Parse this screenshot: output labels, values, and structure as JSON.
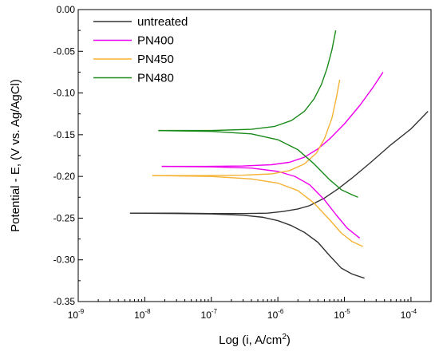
{
  "chart_data": {
    "type": "line",
    "xlabel": "Log (i, A/cm",
    "xlabel_sup": "2",
    "xlabel_close": ")",
    "ylabel": "Potential - E, (V vs. Ag/AgCl)",
    "xscale": "log",
    "xlim": [
      1e-09,
      0.0002
    ],
    "ylim": [
      -0.35,
      0.0
    ],
    "x_ticks": [
      {
        "value": 1e-09,
        "base": "10",
        "exp": "-9"
      },
      {
        "value": 1e-08,
        "base": "10",
        "exp": "-8"
      },
      {
        "value": 1e-07,
        "base": "10",
        "exp": "-7"
      },
      {
        "value": 1e-06,
        "base": "10",
        "exp": "-6"
      },
      {
        "value": 1e-05,
        "base": "10",
        "exp": "-5"
      },
      {
        "value": 0.0001,
        "base": "10",
        "exp": "-4"
      }
    ],
    "y_ticks": [
      {
        "value": 0.0,
        "label": "0.00"
      },
      {
        "value": -0.05,
        "label": "-0.05"
      },
      {
        "value": -0.1,
        "label": "-0.10"
      },
      {
        "value": -0.15,
        "label": "-0.15"
      },
      {
        "value": -0.2,
        "label": "-0.20"
      },
      {
        "value": -0.25,
        "label": "-0.25"
      },
      {
        "value": -0.3,
        "label": "-0.30"
      },
      {
        "value": -0.35,
        "label": "-0.35"
      }
    ],
    "grid": false,
    "legend": "top-left",
    "series": [
      {
        "name": "untreated",
        "color": "#333333",
        "anodic": [
          [
            6e-09,
            -0.244
          ],
          [
            3e-08,
            -0.244
          ],
          [
            1e-07,
            -0.2445
          ],
          [
            3e-07,
            -0.2445
          ],
          [
            7e-07,
            -0.244
          ],
          [
            1.2e-06,
            -0.242
          ],
          [
            2e-06,
            -0.239
          ],
          [
            3e-06,
            -0.235
          ],
          [
            5e-06,
            -0.226
          ],
          [
            8e-06,
            -0.215
          ],
          [
            1.3e-05,
            -0.202
          ],
          [
            2.5e-05,
            -0.183
          ],
          [
            5e-05,
            -0.162
          ],
          [
            0.0001,
            -0.143
          ],
          [
            0.00018,
            -0.122
          ]
        ],
        "cathodic": [
          [
            6e-09,
            -0.244
          ],
          [
            3e-08,
            -0.2445
          ],
          [
            1e-07,
            -0.245
          ],
          [
            3e-07,
            -0.2465
          ],
          [
            6e-07,
            -0.249
          ],
          [
            1e-06,
            -0.253
          ],
          [
            1.6e-06,
            -0.259
          ],
          [
            2.5e-06,
            -0.267
          ],
          [
            4e-06,
            -0.279
          ],
          [
            6e-06,
            -0.295
          ],
          [
            9e-06,
            -0.31
          ],
          [
            1.3e-05,
            -0.317
          ],
          [
            2e-05,
            -0.322
          ]
        ]
      },
      {
        "name": "PN400",
        "color": "#ee00ee",
        "anodic": [
          [
            1.8e-08,
            -0.188
          ],
          [
            8e-08,
            -0.188
          ],
          [
            3e-07,
            -0.1875
          ],
          [
            8e-07,
            -0.186
          ],
          [
            1.5e-06,
            -0.183
          ],
          [
            2.5e-06,
            -0.177
          ],
          [
            4e-06,
            -0.167
          ],
          [
            6e-06,
            -0.155
          ],
          [
            1e-05,
            -0.137
          ],
          [
            1.7e-05,
            -0.115
          ],
          [
            2.7e-05,
            -0.093
          ],
          [
            3.8e-05,
            -0.075
          ]
        ],
        "cathodic": [
          [
            1.8e-08,
            -0.188
          ],
          [
            1e-07,
            -0.1885
          ],
          [
            4e-07,
            -0.19
          ],
          [
            1e-06,
            -0.194
          ],
          [
            1.8e-06,
            -0.2
          ],
          [
            3e-06,
            -0.21
          ],
          [
            5e-06,
            -0.228
          ],
          [
            7.5e-06,
            -0.246
          ],
          [
            1.1e-05,
            -0.262
          ],
          [
            1.7e-05,
            -0.274
          ]
        ]
      },
      {
        "name": "PN450",
        "color": "#f5b335",
        "anodic": [
          [
            1.3e-08,
            -0.199
          ],
          [
            8e-08,
            -0.199
          ],
          [
            3e-07,
            -0.1985
          ],
          [
            8e-07,
            -0.197
          ],
          [
            1.5e-06,
            -0.193
          ],
          [
            2.5e-06,
            -0.185
          ],
          [
            3.8e-06,
            -0.172
          ],
          [
            5e-06,
            -0.155
          ],
          [
            6.5e-06,
            -0.13
          ],
          [
            7.5e-06,
            -0.107
          ],
          [
            8.5e-06,
            -0.084
          ]
        ],
        "cathodic": [
          [
            1.3e-08,
            -0.199
          ],
          [
            1e-07,
            -0.2
          ],
          [
            4e-07,
            -0.203
          ],
          [
            1e-06,
            -0.208
          ],
          [
            2e-06,
            -0.217
          ],
          [
            3.5e-06,
            -0.232
          ],
          [
            6e-06,
            -0.252
          ],
          [
            9e-06,
            -0.268
          ],
          [
            1.3e-05,
            -0.278
          ],
          [
            1.9e-05,
            -0.284
          ]
        ]
      },
      {
        "name": "PN480",
        "color": "#1a8a1a",
        "anodic": [
          [
            1.6e-08,
            -0.145
          ],
          [
            1e-07,
            -0.145
          ],
          [
            4e-07,
            -0.1435
          ],
          [
            9e-07,
            -0.14
          ],
          [
            1.6e-06,
            -0.133
          ],
          [
            2.5e-06,
            -0.122
          ],
          [
            3.5e-06,
            -0.107
          ],
          [
            4.5e-06,
            -0.09
          ],
          [
            5.5e-06,
            -0.07
          ],
          [
            6.5e-06,
            -0.048
          ],
          [
            7.4e-06,
            -0.025
          ]
        ],
        "cathodic": [
          [
            1.6e-08,
            -0.145
          ],
          [
            1e-07,
            -0.146
          ],
          [
            4e-07,
            -0.149
          ],
          [
            1e-06,
            -0.156
          ],
          [
            2e-06,
            -0.168
          ],
          [
            3.5e-06,
            -0.185
          ],
          [
            6e-06,
            -0.204
          ],
          [
            9e-06,
            -0.216
          ],
          [
            1.3e-05,
            -0.222
          ],
          [
            1.6e-05,
            -0.225
          ]
        ]
      }
    ]
  }
}
